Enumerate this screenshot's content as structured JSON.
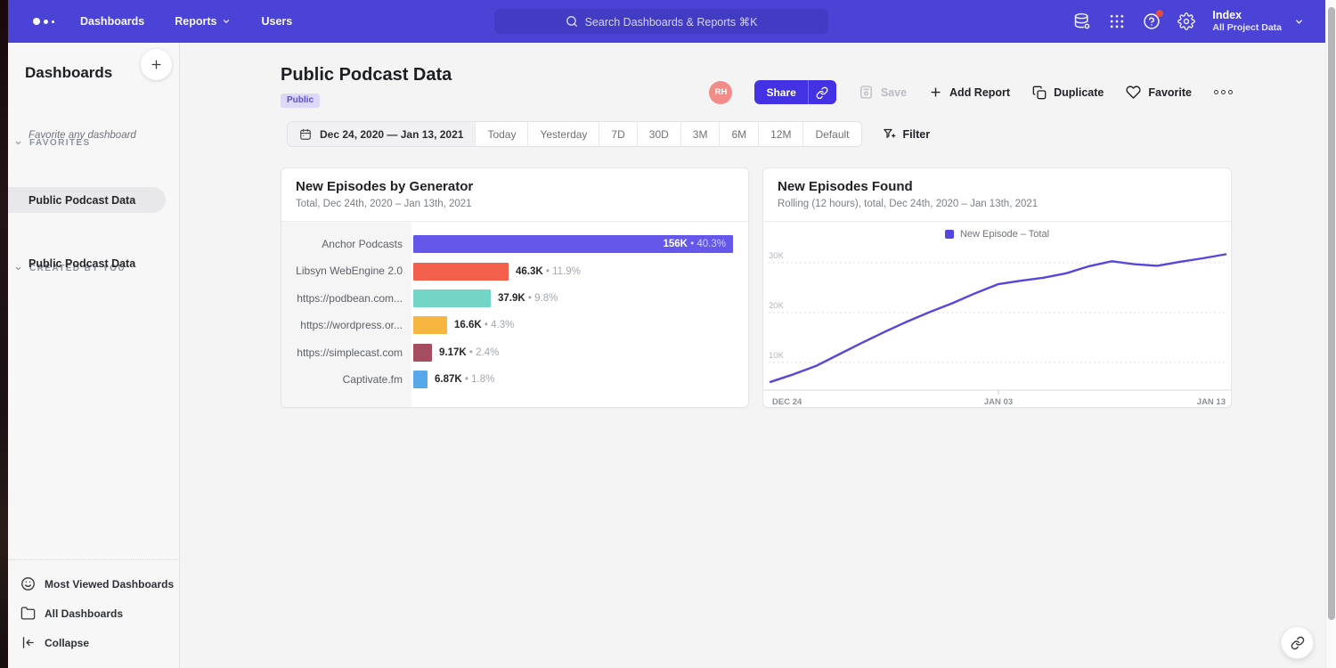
{
  "nav": {
    "items": {
      "dashboards": "Dashboards",
      "reports": "Reports",
      "users": "Users"
    },
    "search_placeholder": "Search Dashboards & Reports ⌘K",
    "icons": [
      "data-sources-icon",
      "apps-grid-icon",
      "help-icon",
      "settings-icon"
    ],
    "project": {
      "name": "Index",
      "scope": "All Project Data"
    },
    "colors": {
      "bg": "#4a43d6",
      "search_bg": "#423bc4"
    }
  },
  "sidebar": {
    "title": "Dashboards",
    "sections": [
      {
        "label": "FAVORITES",
        "empty_text": "Favorite any dashboard"
      },
      {
        "label": "RECENTLY VIEWED",
        "items": [
          {
            "label": "Public Podcast Data",
            "active": true
          }
        ]
      },
      {
        "label": "CREATED BY YOU",
        "items": [
          {
            "label": "Public Podcast Data",
            "active": false
          }
        ]
      }
    ],
    "footer": [
      {
        "label": "Most Viewed Dashboards",
        "icon": "smiley-icon"
      },
      {
        "label": "All Dashboards",
        "icon": "folder-icon"
      },
      {
        "label": "Collapse",
        "icon": "collapse-left-icon"
      }
    ]
  },
  "header": {
    "title": "Public Podcast Data",
    "badge": "Public",
    "avatar_initials": "RH",
    "actions": {
      "share": "Share",
      "save": "Save",
      "add_report": "Add Report",
      "duplicate": "Duplicate",
      "favorite": "Favorite"
    }
  },
  "toolbar": {
    "date_range": "Dec 24, 2020 — Jan 13, 2021",
    "presets": [
      "Today",
      "Yesterday",
      "7D",
      "30D",
      "3M",
      "6M",
      "12M",
      "Default"
    ],
    "filter_label": "Filter"
  },
  "chart_data": [
    {
      "type": "bar",
      "orientation": "horizontal",
      "title": "New Episodes by Generator",
      "subtitle": "Total, Dec 24th, 2020 – Jan 13th, 2021",
      "categories": [
        "Anchor Podcasts",
        "Libsyn WebEngine 2.0",
        "https://podbean.com...",
        "https://wordpress.or...",
        "https://simplecast.com",
        "Captivate.fm"
      ],
      "values": [
        156000,
        46300,
        37900,
        16600,
        9170,
        6870
      ],
      "value_labels": [
        "156K",
        "46.3K",
        "37.9K",
        "16.6K",
        "9.17K",
        "6.87K"
      ],
      "pct_labels": [
        "40.3%",
        "11.9%",
        "9.8%",
        "4.3%",
        "2.4%",
        "1.8%"
      ],
      "colors": [
        "#6557e9",
        "#f3604b",
        "#72d5c6",
        "#f6b640",
        "#a64c61",
        "#57a8e9"
      ],
      "max_value": 156000,
      "grid": false,
      "legend_position": "none"
    },
    {
      "type": "line",
      "title": "New Episodes Found",
      "subtitle": "Rolling (12 hours), total, Dec 24th, 2020 – Jan 13th, 2021",
      "legend": [
        "New Episode – Total"
      ],
      "legend_position": "top-center",
      "line_color": "#5646df",
      "grid": "dotted-horizontal",
      "ylim": [
        0,
        33500
      ],
      "y_ticks": [
        "10K",
        "20K",
        "30K"
      ],
      "x_ticks": [
        "DEC 24",
        "JAN 03",
        "JAN 13"
      ],
      "x": [
        "Dec 24",
        "Dec 25",
        "Dec 26",
        "Dec 27",
        "Dec 28",
        "Dec 29",
        "Dec 30",
        "Dec 31",
        "Jan 1",
        "Jan 2",
        "Jan 3",
        "Jan 4",
        "Jan 5",
        "Jan 6",
        "Jan 7",
        "Jan 8",
        "Jan 9",
        "Jan 10",
        "Jan 11",
        "Jan 12",
        "Jan 13"
      ],
      "values": [
        6100,
        7600,
        9300,
        11600,
        13900,
        16100,
        18200,
        20100,
        21900,
        23900,
        25700,
        26400,
        27000,
        27900,
        29300,
        30300,
        29700,
        29400,
        30200,
        30900,
        31700
      ]
    }
  ],
  "floating": {
    "icon": "link-icon"
  }
}
